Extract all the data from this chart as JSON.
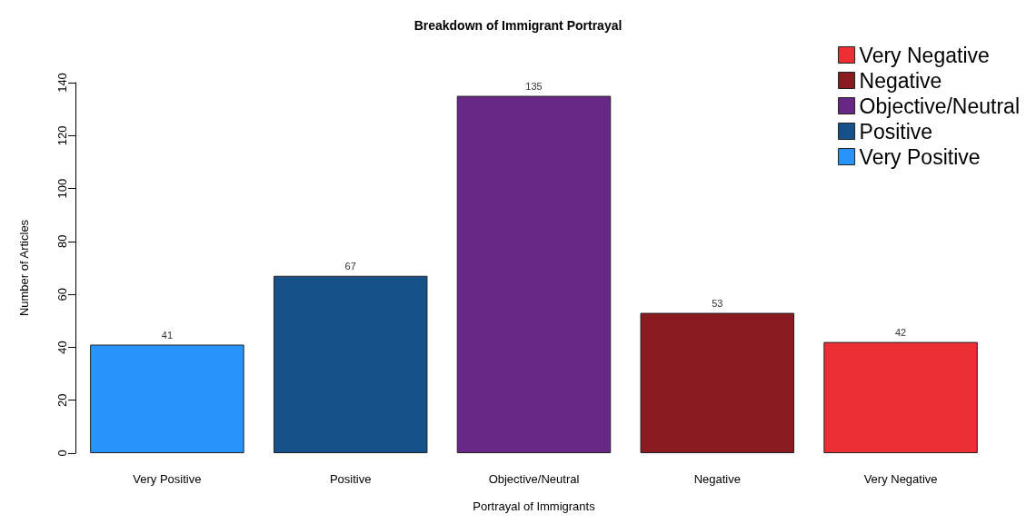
{
  "chart_data": {
    "type": "bar",
    "title": "Breakdown of Immigrant Portrayal",
    "xlabel": "Portrayal of Immigrants",
    "ylabel": "Number of Articles",
    "categories": [
      "Very Positive",
      "Positive",
      "Objective/Neutral",
      "Negative",
      "Very Negative"
    ],
    "series": [
      {
        "name": "Very Positive",
        "color": "#2893fb",
        "values": [
          41,
          null,
          null,
          null,
          null
        ]
      },
      {
        "name": "Positive",
        "color": "#16518a",
        "values": [
          null,
          67,
          null,
          null,
          null
        ]
      },
      {
        "name": "Objective/Neutral",
        "color": "#672784",
        "values": [
          null,
          null,
          135,
          null,
          null
        ]
      },
      {
        "name": "Negative",
        "color": "#891b20",
        "values": [
          null,
          null,
          null,
          53,
          null
        ]
      },
      {
        "name": "Very Negative",
        "color": "#ec2e35",
        "values": [
          null,
          null,
          null,
          null,
          42
        ]
      }
    ],
    "ylim": [
      0,
      140
    ],
    "yticks": [
      0,
      20,
      40,
      60,
      80,
      100,
      120,
      140
    ],
    "grid": false,
    "legend": "top right",
    "data_labels": true
  }
}
